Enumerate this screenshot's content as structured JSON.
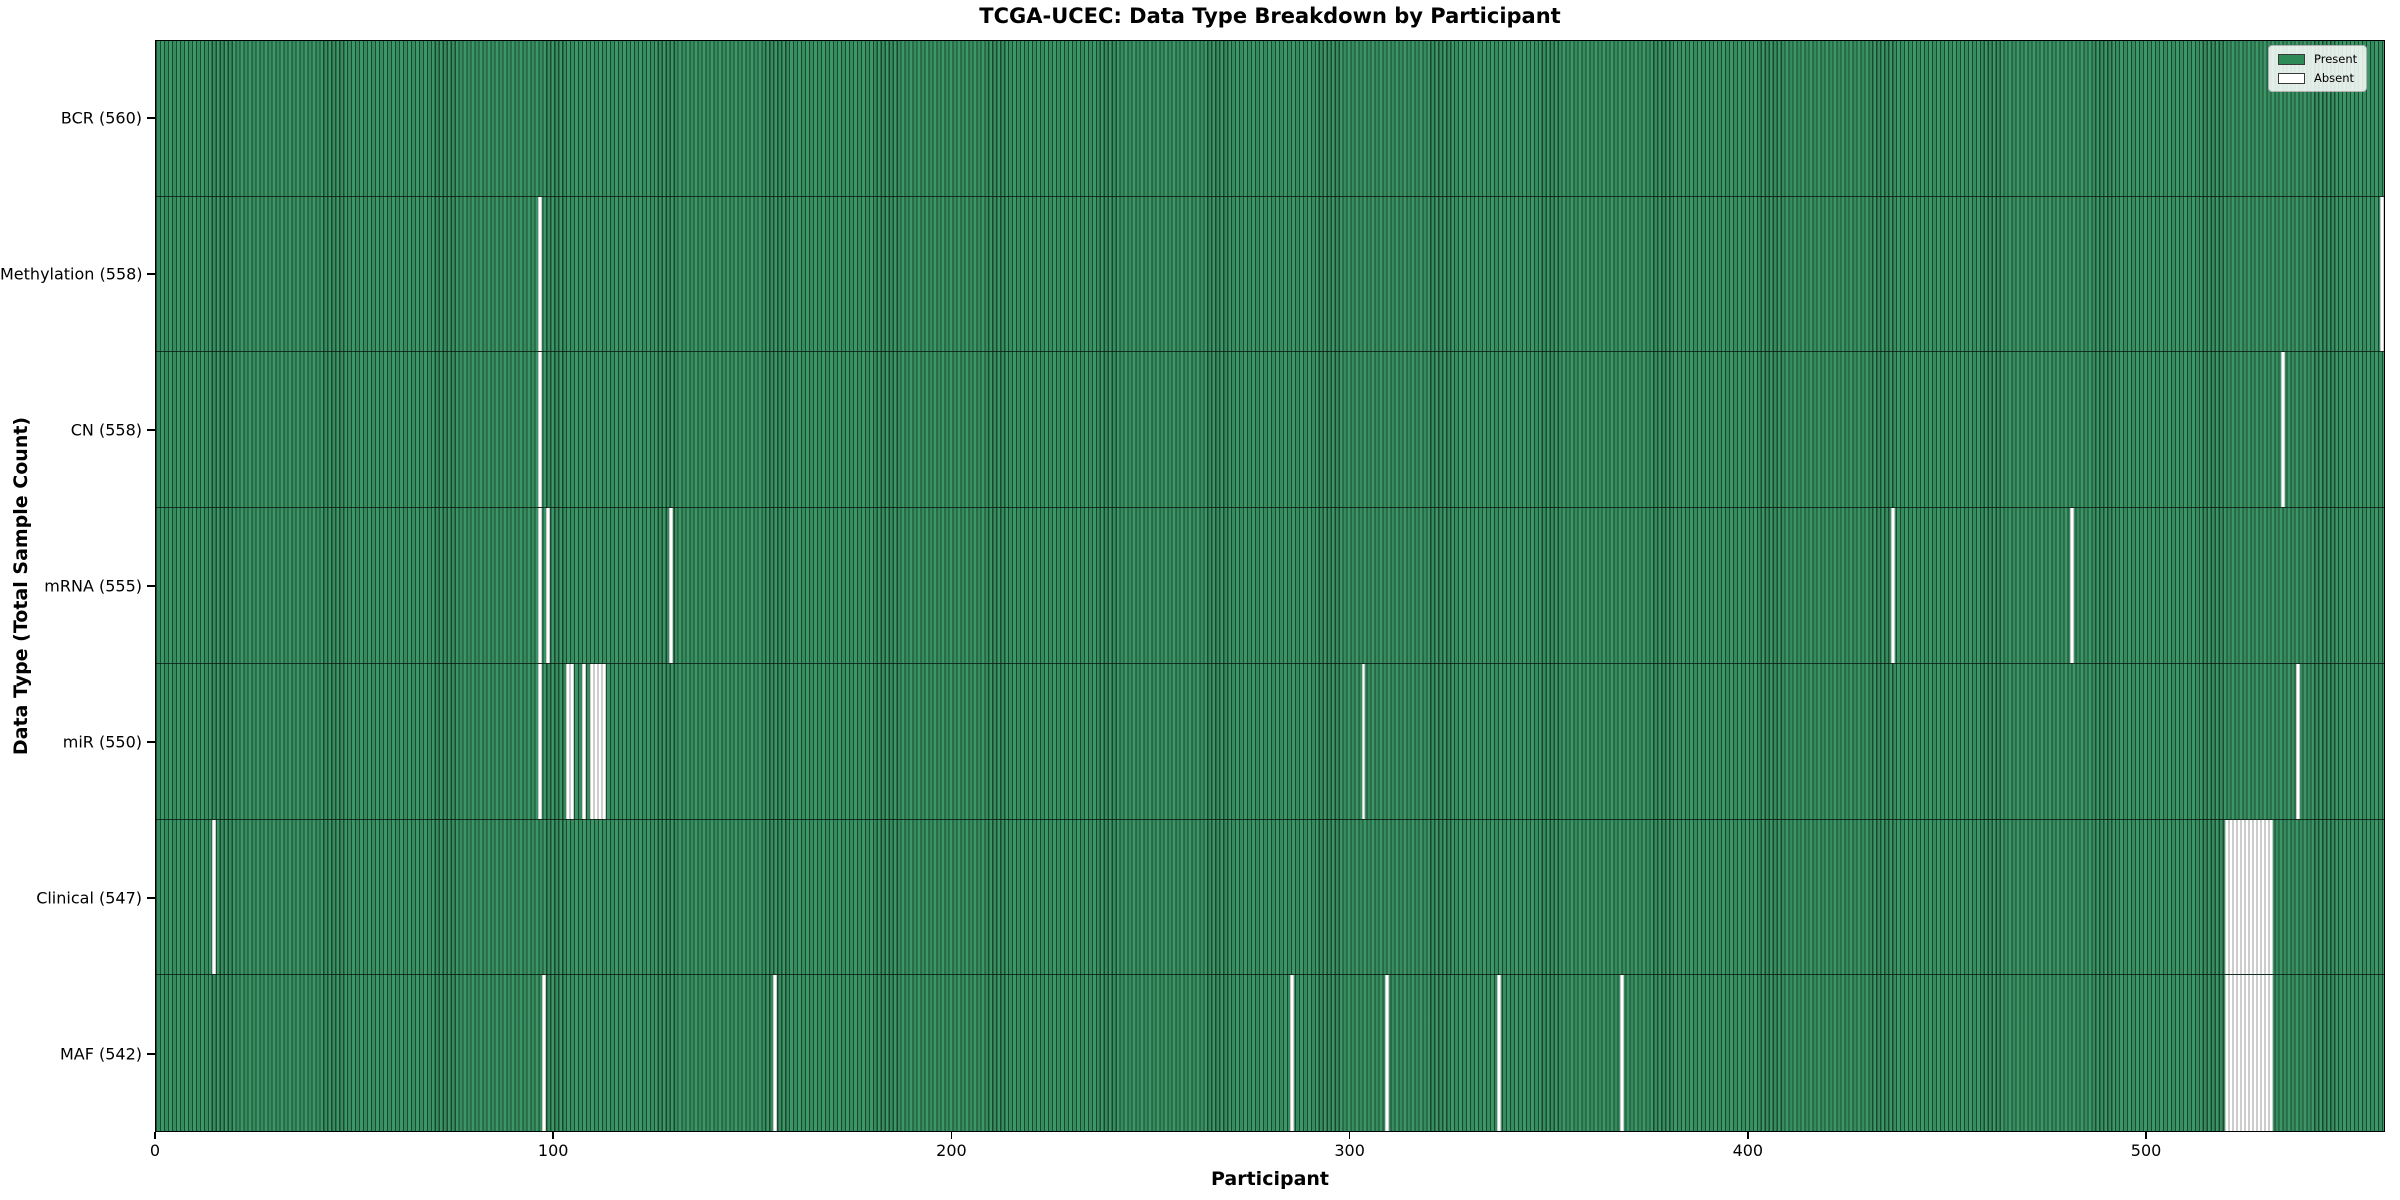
{
  "chart_data": {
    "type": "heatmap",
    "title": "TCGA-UCEC: Data Type Breakdown by Participant",
    "xlabel": "Participant",
    "ylabel": "Data Type (Total Sample Count)",
    "x_ticks": [
      0,
      100,
      200,
      300,
      400,
      500
    ],
    "x_range": [
      0,
      560
    ],
    "n_participants": 560,
    "grid": false,
    "legend_position": "upper right",
    "legend": [
      {
        "label": "Present",
        "color": "#2e8b57"
      },
      {
        "label": "Absent",
        "color": "#ffffff"
      }
    ],
    "colors": {
      "present": "#2e8b57",
      "absent": "#ffffff",
      "cell_edge": "#1b4c30"
    },
    "rows": [
      {
        "label": "BCR (560)",
        "data_type": "BCR",
        "count": 560,
        "absent_participants": []
      },
      {
        "label": "Methylation (558)",
        "data_type": "Methylation",
        "count": 558,
        "absent_participants": [
          96,
          559
        ]
      },
      {
        "label": "CN (558)",
        "data_type": "CN",
        "count": 558,
        "absent_participants": [
          96,
          534
        ]
      },
      {
        "label": "mRNA (555)",
        "data_type": "mRNA",
        "count": 555,
        "absent_participants": [
          96,
          98,
          129,
          436,
          481
        ]
      },
      {
        "label": "miR (550)",
        "data_type": "miR",
        "count": 550,
        "absent_participants": [
          96,
          103,
          104,
          107,
          109,
          110,
          111,
          112,
          303,
          538
        ]
      },
      {
        "label": "Clinical (547)",
        "data_type": "Clinical",
        "count": 547,
        "absent_participants": [
          14,
          520,
          521,
          522,
          523,
          524,
          525,
          526,
          527,
          528,
          529,
          530,
          531
        ]
      },
      {
        "label": "MAF (542)",
        "data_type": "MAF",
        "count": 542,
        "absent_participants": [
          97,
          155,
          285,
          309,
          337,
          368,
          520,
          521,
          522,
          523,
          524,
          525,
          526,
          527,
          528,
          529,
          530,
          531
        ]
      }
    ]
  }
}
